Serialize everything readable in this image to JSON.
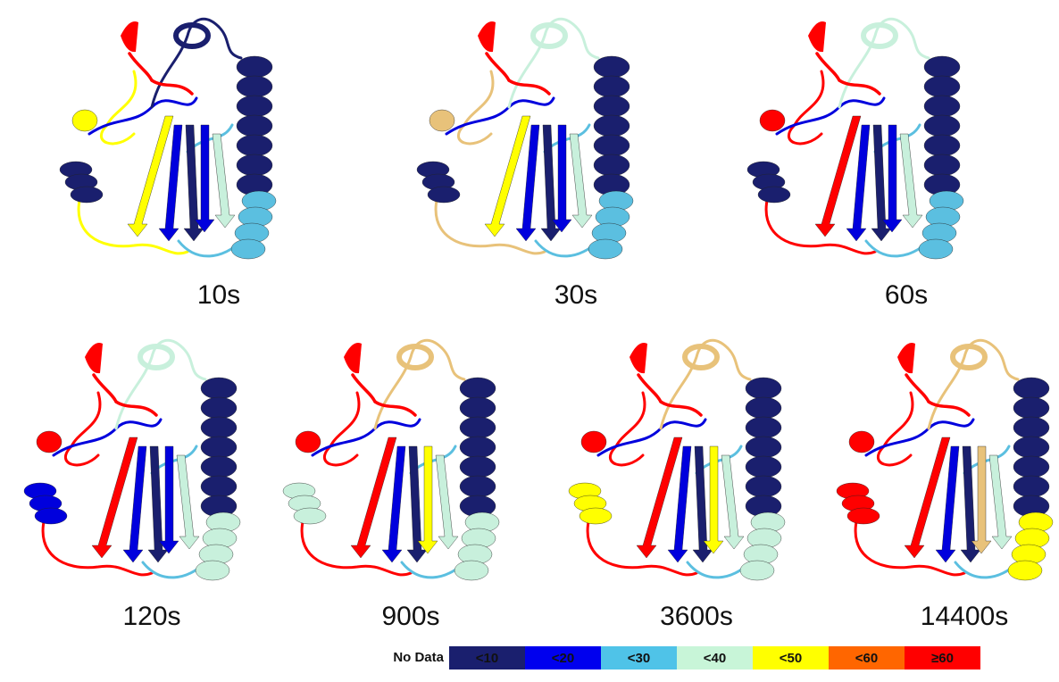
{
  "panels": [
    {
      "label": "10s",
      "colors": [
        "#ff0000",
        "#ffff00",
        "#1a1f6e",
        "#ffff00",
        "#0000dd",
        "#1a1f6e",
        "#5bbfe0",
        "#1a1f6e"
      ]
    },
    {
      "label": "30s",
      "colors": [
        "#ff0000",
        "#e8c27a",
        "#1a1f6e",
        "#ffff00",
        "#0000dd",
        "#1a1f6e",
        "#5bbfe0",
        "#c8f0dc"
      ]
    },
    {
      "label": "60s",
      "colors": [
        "#ff0000",
        "#ff0000",
        "#1a1f6e",
        "#ff0000",
        "#0000dd",
        "#1a1f6e",
        "#5bbfe0",
        "#c8f0dc"
      ]
    },
    {
      "label": "120s",
      "colors": [
        "#ff0000",
        "#ff0000",
        "#0000dd",
        "#ff0000",
        "#0000dd",
        "#1a1f6e",
        "#c8f0dc",
        "#c8f0dc"
      ]
    },
    {
      "label": "900s",
      "colors": [
        "#ff0000",
        "#ff0000",
        "#c8f0dc",
        "#ff0000",
        "#ffff00",
        "#1a1f6e",
        "#c8f0dc",
        "#e8c27a"
      ]
    },
    {
      "label": "3600s",
      "colors": [
        "#ff0000",
        "#ff0000",
        "#ffff00",
        "#ff0000",
        "#ffff00",
        "#1a1f6e",
        "#c8f0dc",
        "#e8c27a"
      ]
    },
    {
      "label": "14400s",
      "colors": [
        "#ff0000",
        "#ff0000",
        "#ff0000",
        "#ff0000",
        "#e8c27a",
        "#1a1f6e",
        "#ffff00",
        "#e8c27a"
      ]
    }
  ],
  "legend": {
    "title": "No Data",
    "bins": [
      {
        "label": "<10",
        "color": "#1a1f6e"
      },
      {
        "label": "<20",
        "color": "#0000ee"
      },
      {
        "label": "<30",
        "color": "#4fc3e8"
      },
      {
        "label": "<40",
        "color": "#c8f5d8"
      },
      {
        "label": "<50",
        "color": "#ffff00"
      },
      {
        "label": "<60",
        "color": "#ff6600"
      },
      {
        "label": "≥60",
        "color": "#ff0000"
      }
    ]
  }
}
